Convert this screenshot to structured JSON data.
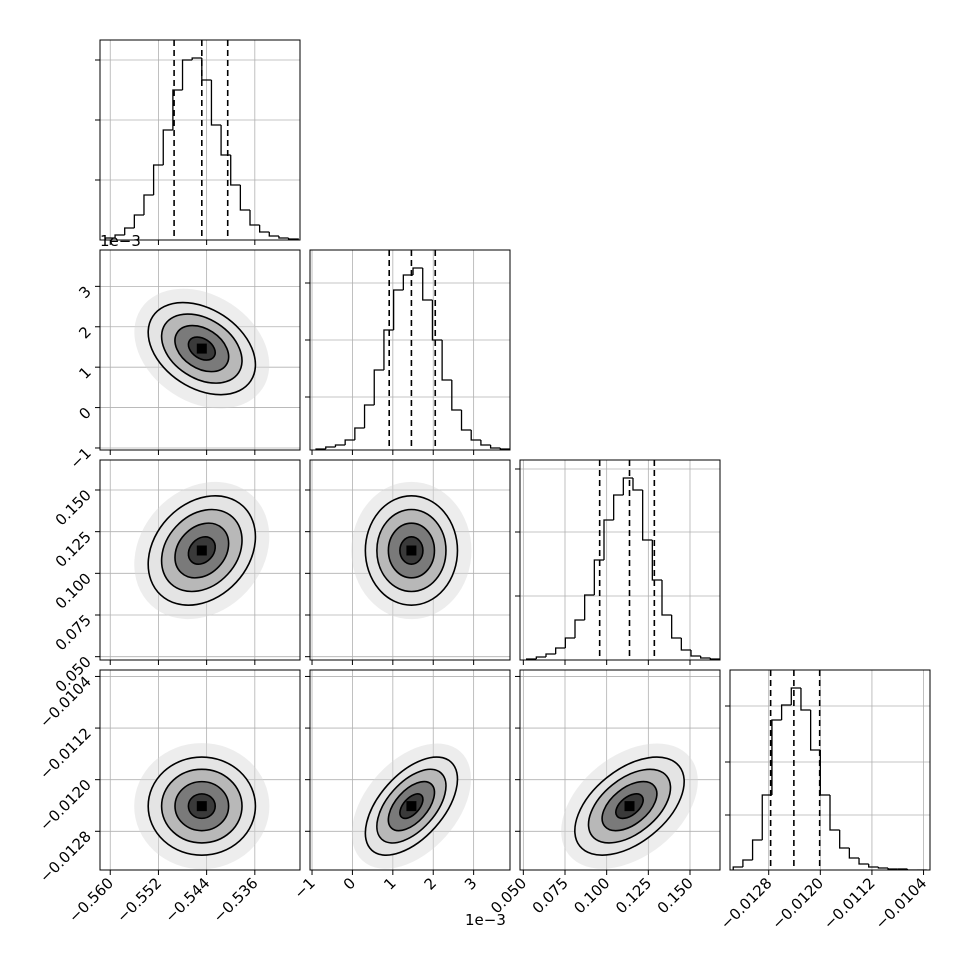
{
  "chart_data": {
    "type": "corner",
    "grid": true,
    "levels": [
      0.5,
      1,
      1.5,
      2
    ],
    "params": [
      {
        "lim": [
          -0.5617,
          -0.5285
        ],
        "ticks": [
          {
            "value": -0.56,
            "label": "−0.560"
          },
          {
            "value": -0.552,
            "label": "−0.552"
          },
          {
            "value": -0.544,
            "label": "−0.544"
          },
          {
            "value": -0.536,
            "label": "−0.536"
          }
        ],
        "bins": [
          -0.5608,
          -0.5592,
          -0.5576,
          -0.556,
          -0.5544,
          -0.5528,
          -0.5512,
          -0.5496,
          -0.548,
          -0.5464,
          -0.5448,
          -0.5432,
          -0.5416,
          -0.54,
          -0.5384,
          -0.5368,
          -0.5352,
          -0.5336,
          -0.532,
          -0.5304,
          -0.5288
        ],
        "counts": [
          2,
          5,
          12,
          25,
          45,
          75,
          110,
          150,
          180,
          182,
          160,
          115,
          85,
          55,
          30,
          15,
          8,
          4,
          2,
          1
        ],
        "hist_ylim": [
          0,
          200
        ],
        "hist_yticks": [
          60,
          120,
          180
        ],
        "quantiles": [
          -0.5494,
          -0.5448,
          -0.5405
        ]
      },
      {
        "lim": [
          -1.05,
          3.9
        ],
        "offset_label": "1e−3",
        "ticks": [
          {
            "value": -1,
            "label": "−1"
          },
          0,
          1,
          2,
          3
        ],
        "bins": [
          -0.9,
          -0.66,
          -0.42,
          -0.18,
          0.06,
          0.3,
          0.54,
          0.78,
          1.02,
          1.26,
          1.5,
          1.74,
          1.98,
          2.22,
          2.46,
          2.7,
          2.94,
          3.18,
          3.42,
          3.66,
          3.9
        ],
        "counts": [
          1,
          3,
          5,
          10,
          22,
          45,
          80,
          120,
          160,
          175,
          182,
          150,
          110,
          70,
          40,
          20,
          10,
          5,
          2,
          1
        ],
        "hist_ylim": [
          0,
          200
        ],
        "hist_yticks": [
          53,
          110,
          167
        ],
        "quantiles": [
          0.91,
          1.46,
          2.05
        ]
      },
      {
        "lim": [
          0.048,
          0.168
        ],
        "ticks": [
          {
            "value": 0.05,
            "label": "0.050"
          },
          0.075,
          {
            "value": 0.1,
            "label": "0.100"
          },
          0.125,
          {
            "value": 0.15,
            "label": "0.150"
          }
        ],
        "bins": [
          0.052,
          0.0578,
          0.0636,
          0.0694,
          0.0752,
          0.081,
          0.0868,
          0.0926,
          0.0984,
          0.1042,
          0.11,
          0.1158,
          0.1216,
          0.1274,
          0.1332,
          0.139,
          0.1448,
          0.1506,
          0.1564,
          0.1622,
          0.168
        ],
        "counts": [
          1,
          3,
          6,
          12,
          22,
          40,
          65,
          100,
          140,
          165,
          182,
          170,
          120,
          80,
          45,
          22,
          10,
          4,
          2,
          1
        ],
        "hist_ylim": [
          0,
          200
        ],
        "hist_yticks": [
          64,
          128,
          191
        ],
        "quantiles": [
          0.0958,
          0.1137,
          0.1286
        ]
      },
      {
        "lim": [
          -0.0134,
          -0.0103
        ],
        "ticks": [
          {
            "value": -0.0128,
            "label": "−0.0128"
          },
          {
            "value": -0.012,
            "label": "−0.0120"
          },
          {
            "value": -0.0112,
            "label": "−0.0112"
          },
          {
            "value": -0.0104,
            "label": "−0.0104"
          }
        ],
        "bins": [
          -0.01335,
          -0.0132,
          -0.01305,
          -0.0129,
          -0.01275,
          -0.0126,
          -0.01245,
          -0.0123,
          -0.01215,
          -0.012,
          -0.01185,
          -0.0117,
          -0.01155,
          -0.0114,
          -0.01125,
          -0.0111,
          -0.01095,
          -0.0108,
          -0.01065,
          -0.0105,
          -0.01035
        ],
        "counts": [
          3,
          10,
          30,
          75,
          150,
          165,
          182,
          160,
          120,
          75,
          40,
          22,
          12,
          6,
          3,
          2,
          1,
          1,
          0,
          0
        ],
        "hist_ylim": [
          0,
          200
        ],
        "hist_yticks": [
          55,
          108,
          164
        ],
        "quantiles": [
          -0.01277,
          -0.01241,
          -0.01201
        ]
      }
    ],
    "pairs": [
      {
        "row": 1,
        "col": 0,
        "corr": -0.35
      },
      {
        "row": 2,
        "col": 0,
        "corr": 0.25
      },
      {
        "row": 2,
        "col": 1,
        "corr": 0.0
      },
      {
        "row": 3,
        "col": 0,
        "corr": 0.0
      },
      {
        "row": 3,
        "col": 1,
        "corr": 0.55
      },
      {
        "row": 3,
        "col": 2,
        "corr": 0.5
      }
    ]
  }
}
